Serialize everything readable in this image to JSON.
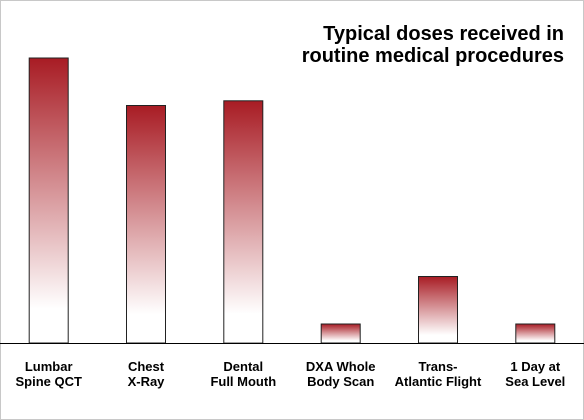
{
  "chart_data": {
    "type": "bar",
    "title": "Typical doses received in\nroutine medical procedures",
    "xlabel": "",
    "ylabel": "",
    "categories": [
      [
        "Lumbar",
        "Spine QCT"
      ],
      [
        "Chest",
        "X-Ray"
      ],
      [
        "Dental",
        "Full Mouth"
      ],
      [
        "DXA Whole",
        "Body Scan"
      ],
      [
        "Trans-",
        "Atlantic Flight"
      ],
      [
        "1 Day at",
        "Sea Level"
      ]
    ],
    "values": [
      60,
      50,
      51,
      4,
      14,
      4
    ],
    "ylim": [
      0,
      68
    ],
    "grid": false,
    "legend": "none",
    "colors": {
      "bar_dark": "#a81c24",
      "bar_light": "#ffffff",
      "bar_outline": "#222222",
      "axis": "#000000",
      "frame": "#c8c8c8"
    }
  }
}
